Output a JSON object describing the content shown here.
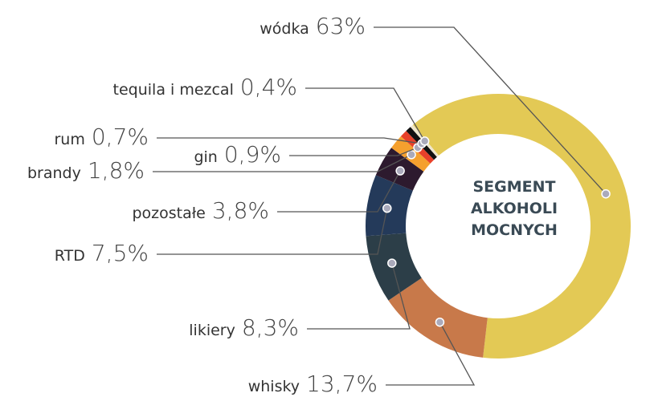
{
  "chart_data": {
    "type": "donut",
    "center_text": [
      "SEGMENT",
      "ALKOHOLI",
      "MOCNYCH"
    ],
    "categories": [
      "wódka",
      "whisky",
      "likiery",
      "RTD",
      "pozostałe",
      "brandy",
      "gin",
      "rum",
      "tequila i mezcal"
    ],
    "values": [
      63,
      13.7,
      8.3,
      7.5,
      3.8,
      1.8,
      0.9,
      0.7,
      0.4
    ],
    "value_labels": [
      "63%",
      "13,7%",
      "8,3%",
      "7,5%",
      "3,8%",
      "1,8%",
      "0,9%",
      "0,7%",
      "0,4%"
    ],
    "colors": [
      "#e3c955",
      "#c8794a",
      "#2c3e48",
      "#243a5a",
      "#2d1a2e",
      "#f5a02e",
      "#e8412a",
      "#111111",
      "#efe6cc"
    ]
  }
}
